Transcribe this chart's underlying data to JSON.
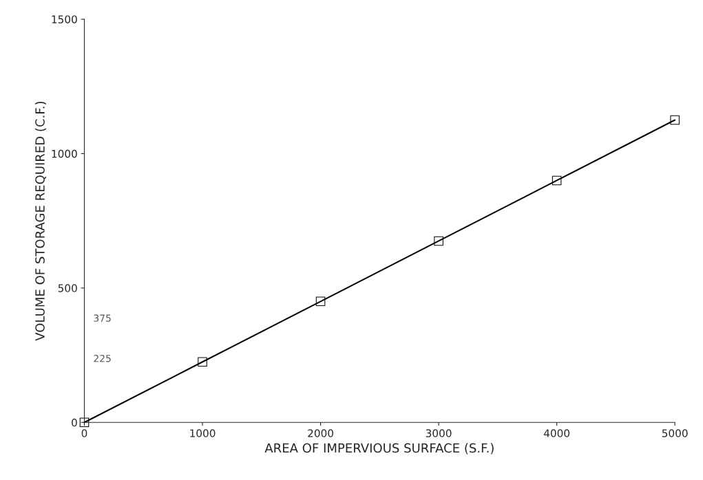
{
  "chart_data": {
    "type": "line",
    "xlabel": "AREA OF IMPERVIOUS SURFACE (S.F.)",
    "ylabel": "VOLUME OF STORAGE REQUIRED (C.F.)",
    "x": [
      0,
      1000,
      2000,
      3000,
      4000,
      5000
    ],
    "series": [
      {
        "color": "#000000",
        "values": [
          0,
          225,
          450,
          675,
          900,
          1125
        ]
      }
    ],
    "xlim": [
      0,
      5000
    ],
    "ylim": [
      0,
      1500
    ],
    "xticks": [
      0,
      1000,
      2000,
      3000,
      4000,
      5000
    ],
    "yticks": [
      0,
      500,
      1000,
      1500
    ],
    "marker": "square",
    "line_style": "solid",
    "grid": false,
    "annotations": [
      "375",
      "225"
    ]
  }
}
